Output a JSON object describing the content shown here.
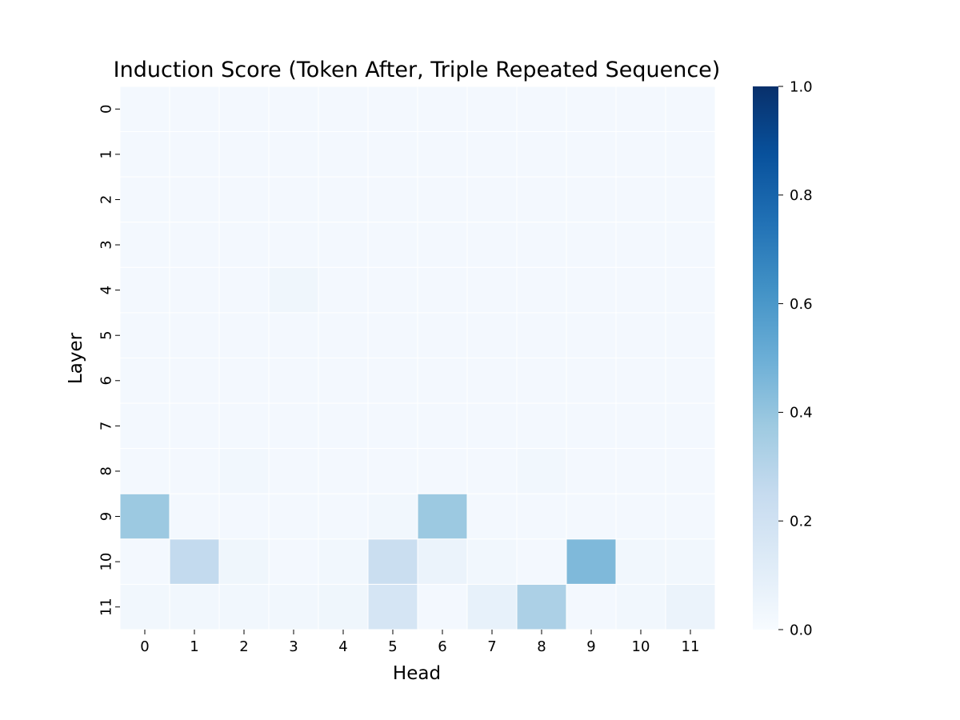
{
  "chart_data": {
    "type": "heatmap",
    "title": "Induction Score (Token After, Triple Repeated Sequence)",
    "xlabel": "Head",
    "ylabel": "Layer",
    "x_categories": [
      "0",
      "1",
      "2",
      "3",
      "4",
      "5",
      "6",
      "7",
      "8",
      "9",
      "10",
      "11"
    ],
    "y_categories": [
      "0",
      "1",
      "2",
      "3",
      "4",
      "5",
      "6",
      "7",
      "8",
      "9",
      "10",
      "11"
    ],
    "colormap": "Blues",
    "vmin": 0.0,
    "vmax": 1.0,
    "colorbar_ticks": [
      "0.0",
      "0.2",
      "0.4",
      "0.6",
      "0.8",
      "1.0"
    ],
    "values": [
      [
        0.02,
        0.02,
        0.02,
        0.02,
        0.02,
        0.02,
        0.02,
        0.02,
        0.02,
        0.02,
        0.02,
        0.02
      ],
      [
        0.02,
        0.02,
        0.02,
        0.02,
        0.02,
        0.02,
        0.02,
        0.02,
        0.02,
        0.02,
        0.02,
        0.02
      ],
      [
        0.02,
        0.02,
        0.02,
        0.02,
        0.02,
        0.02,
        0.02,
        0.02,
        0.02,
        0.02,
        0.02,
        0.02
      ],
      [
        0.02,
        0.02,
        0.02,
        0.02,
        0.02,
        0.02,
        0.02,
        0.02,
        0.02,
        0.02,
        0.02,
        0.02
      ],
      [
        0.02,
        0.02,
        0.02,
        0.04,
        0.02,
        0.02,
        0.02,
        0.02,
        0.02,
        0.02,
        0.02,
        0.02
      ],
      [
        0.02,
        0.02,
        0.02,
        0.02,
        0.02,
        0.02,
        0.02,
        0.02,
        0.02,
        0.02,
        0.02,
        0.02
      ],
      [
        0.02,
        0.02,
        0.02,
        0.02,
        0.02,
        0.02,
        0.02,
        0.02,
        0.02,
        0.02,
        0.02,
        0.02
      ],
      [
        0.02,
        0.02,
        0.02,
        0.02,
        0.02,
        0.02,
        0.02,
        0.02,
        0.02,
        0.02,
        0.02,
        0.02
      ],
      [
        0.02,
        0.02,
        0.03,
        0.02,
        0.02,
        0.02,
        0.02,
        0.02,
        0.03,
        0.02,
        0.02,
        0.02
      ],
      [
        0.38,
        0.02,
        0.02,
        0.02,
        0.02,
        0.03,
        0.38,
        0.02,
        0.02,
        0.02,
        0.02,
        0.02
      ],
      [
        0.02,
        0.26,
        0.04,
        0.02,
        0.03,
        0.23,
        0.06,
        0.03,
        0.02,
        0.45,
        0.03,
        0.03
      ],
      [
        0.03,
        0.03,
        0.03,
        0.03,
        0.04,
        0.17,
        0.02,
        0.08,
        0.33,
        0.02,
        0.03,
        0.06
      ]
    ]
  }
}
